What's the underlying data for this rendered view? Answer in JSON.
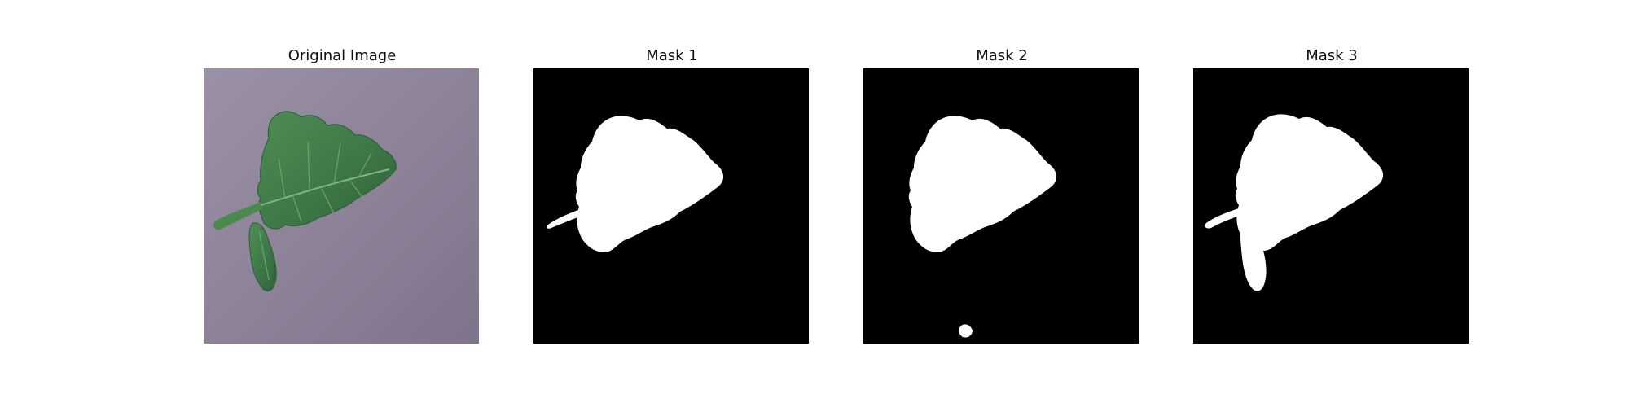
{
  "figure": {
    "panels": [
      {
        "title": "Original Image"
      },
      {
        "title": "Mask 1"
      },
      {
        "title": "Mask 2"
      },
      {
        "title": "Mask 3"
      }
    ]
  },
  "colors": {
    "background": "#ffffff",
    "mask_background": "#000000",
    "mask_foreground": "#ffffff",
    "photo_background": "#8e849a",
    "leaf_green": "#3f7b49"
  }
}
